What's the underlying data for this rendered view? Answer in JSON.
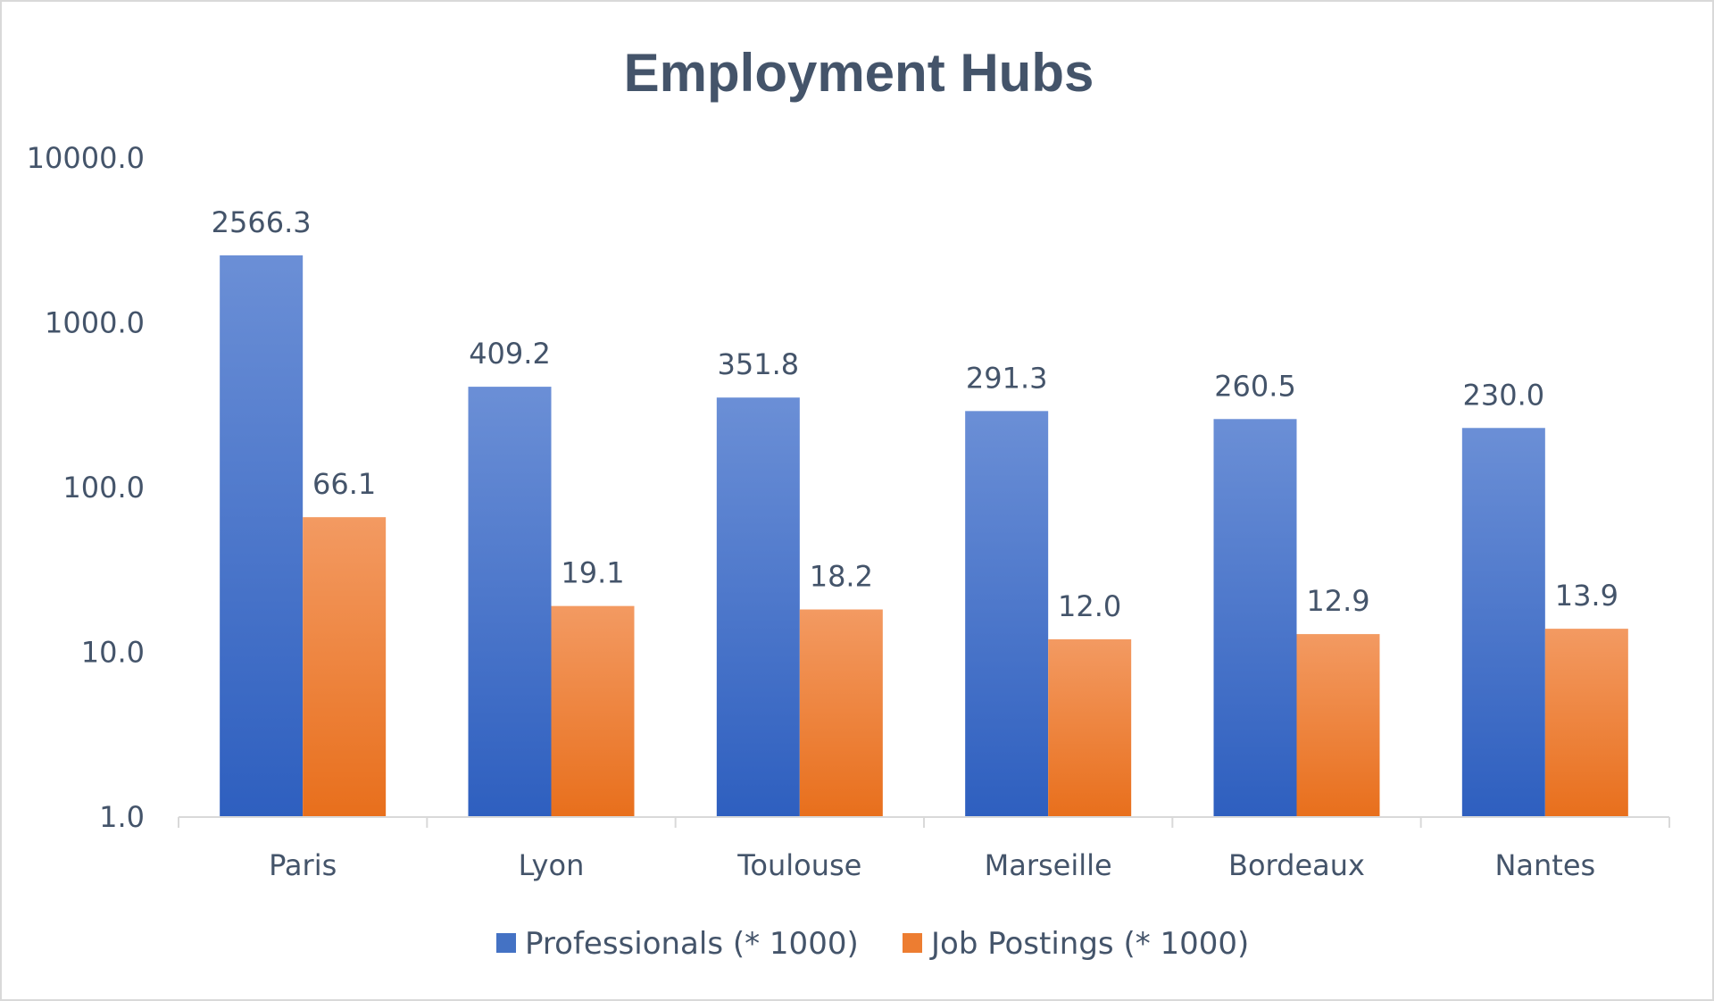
{
  "chart_data": {
    "type": "bar",
    "title": "Employment Hubs",
    "xlabel": "",
    "ylabel": "",
    "yscale": "log",
    "ylim": [
      1,
      10000
    ],
    "yticks": [
      "1.0",
      "10.0",
      "100.0",
      "1000.0",
      "10000.0"
    ],
    "ytick_values": [
      1,
      10,
      100,
      1000,
      10000
    ],
    "grid": false,
    "legend_position": "bottom",
    "categories": [
      "Paris",
      "Lyon",
      "Toulouse",
      "Marseille",
      "Bordeaux",
      "Nantes"
    ],
    "series": [
      {
        "name": "Professionals (* 1000)",
        "values": [
          2566.3,
          409.2,
          351.8,
          291.3,
          260.5,
          230.0
        ],
        "labels": [
          "2566.3",
          "409.2",
          "351.8",
          "291.3",
          "260.5",
          "230.0"
        ],
        "color": "#4472c4"
      },
      {
        "name": "Job Postings (* 1000)",
        "values": [
          66.1,
          19.1,
          18.2,
          12.0,
          12.9,
          13.9
        ],
        "labels": [
          "66.1",
          "19.1",
          "18.2",
          "12.0",
          "12.9",
          "13.9"
        ],
        "color": "#ed7d31"
      }
    ]
  }
}
